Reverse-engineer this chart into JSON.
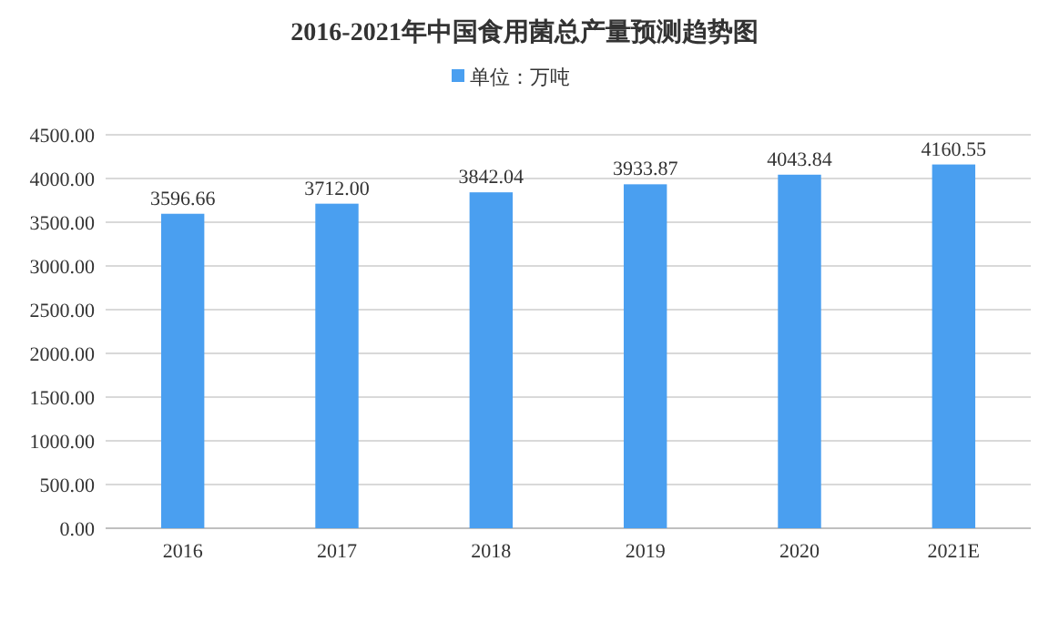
{
  "chart_data": {
    "type": "bar",
    "title": "2016-2021年中国食用菌总产量预测趋势图",
    "categories": [
      "2016",
      "2017",
      "2018",
      "2019",
      "2020",
      "2021E"
    ],
    "series": [
      {
        "name": "单位：万吨",
        "color": "#4a9ff0",
        "values": [
          3596.66,
          3712.0,
          3842.04,
          3933.87,
          4043.84,
          4160.55
        ],
        "value_labels": [
          "3596.66",
          "3712.00",
          "3842.04",
          "3933.87",
          "4043.84",
          "4160.55"
        ]
      }
    ],
    "ylim": [
      0,
      4500
    ],
    "yticks": [
      {
        "value": 0,
        "label": "0.00"
      },
      {
        "value": 500,
        "label": "500.00"
      },
      {
        "value": 1000,
        "label": "1000.00"
      },
      {
        "value": 1500,
        "label": "1500.00"
      },
      {
        "value": 2000,
        "label": "2000.00"
      },
      {
        "value": 2500,
        "label": "2500.00"
      },
      {
        "value": 3000,
        "label": "3000.00"
      },
      {
        "value": 3500,
        "label": "3500.00"
      },
      {
        "value": 4000,
        "label": "4000.00"
      },
      {
        "value": 4500,
        "label": "4500.00"
      }
    ],
    "grid": "y",
    "legend": "top"
  }
}
